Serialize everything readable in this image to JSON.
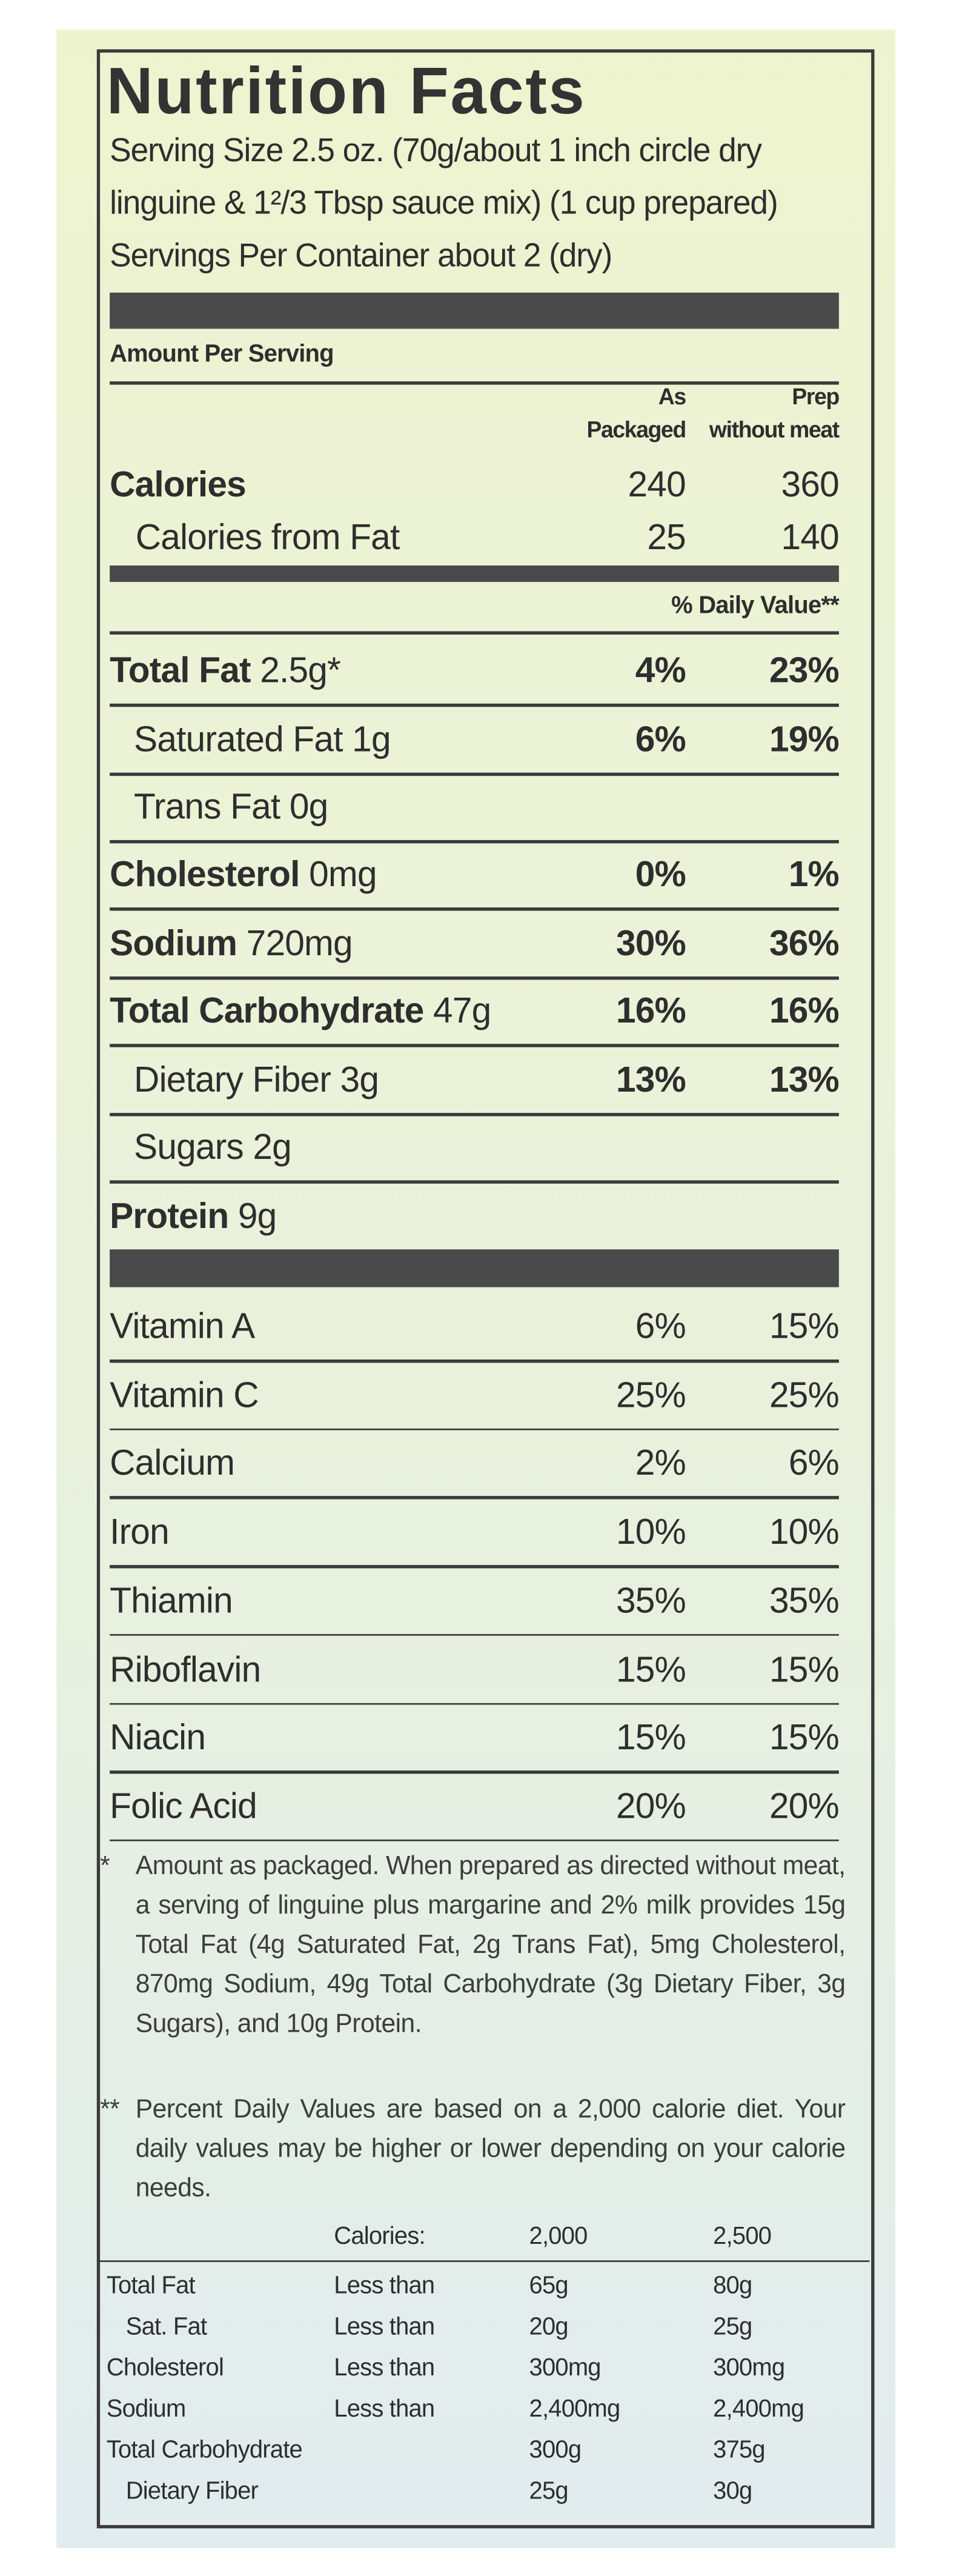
{
  "title": "Nutrition Facts",
  "serving": [
    "Serving Size 2.5 oz. (70g/about 1 inch circle dry",
    "linguine & 1²/3 Tbsp sauce mix) (1 cup prepared)",
    "Servings Per Container about 2 (dry)"
  ],
  "amount_per_serving": "Amount Per Serving",
  "columns": [
    [
      "As",
      "Packaged"
    ],
    [
      "Prep",
      "without meat"
    ]
  ],
  "calories": {
    "label": "Calories",
    "packaged": 240,
    "prep": 360
  },
  "calories_from_fat": {
    "label": "Calories from Fat",
    "packaged": 25,
    "prep": 140
  },
  "daily_value_header": "% Daily Value**",
  "nutrients": [
    {
      "name": "Total Fat",
      "amount": "2.5g*",
      "packaged": "4%",
      "prep": "23%"
    },
    {
      "name": "Saturated Fat",
      "amount": "1g",
      "packaged": "6%",
      "prep": "19%"
    },
    {
      "name": "Trans Fat",
      "amount": "0g"
    },
    {
      "name": "Cholesterol",
      "amount": "0mg",
      "packaged": "0%",
      "prep": "1%"
    },
    {
      "name": "Sodium",
      "amount": "720mg",
      "packaged": "30%",
      "prep": "36%"
    },
    {
      "name": "Total Carbohydrate",
      "amount": "47g",
      "packaged": "16%",
      "prep": "16%"
    },
    {
      "name": "Dietary Fiber",
      "amount": "3g",
      "packaged": "13%",
      "prep": "13%"
    },
    {
      "name": "Sugars",
      "amount": "2g"
    },
    {
      "name": "Protein",
      "amount": "9g"
    }
  ],
  "vitamins": [
    {
      "name": "Vitamin A",
      "packaged": "6%",
      "prep": "15%"
    },
    {
      "name": "Vitamin C",
      "packaged": "25%",
      "prep": "25%"
    },
    {
      "name": "Calcium",
      "packaged": "2%",
      "prep": "6%"
    },
    {
      "name": "Iron",
      "packaged": "10%",
      "prep": "10%"
    },
    {
      "name": "Thiamin",
      "packaged": "35%",
      "prep": "35%"
    },
    {
      "name": "Riboflavin",
      "packaged": "15%",
      "prep": "15%"
    },
    {
      "name": "Niacin",
      "packaged": "15%",
      "prep": "15%"
    },
    {
      "name": "Folic Acid",
      "packaged": "20%",
      "prep": "20%"
    }
  ],
  "footnote_1": {
    "mark": "*",
    "text": "Amount as packaged. When prepared as directed without meat, a serving of linguine plus margarine and 2% milk provides 15g Total Fat (4g Saturated Fat, 2g Trans Fat), 5mg Cholesterol, 870mg Sodium, 49g Total Carbohydrate (3g Dietary Fiber, 3g Sugars), and 10g Protein."
  },
  "footnote_2": {
    "mark": "**",
    "text": "Percent Daily Values are based on a 2,000 calorie diet. Your daily values may be higher or lower depending on your calorie needs."
  },
  "dv_table": {
    "header": [
      "Calories:",
      "2,000",
      "2,500"
    ],
    "rows": [
      {
        "nutrient": "Total Fat",
        "qualifier": "Less than",
        "kcal_2000": "65g",
        "kcal_2500": "80g"
      },
      {
        "nutrient": "Sat. Fat",
        "qualifier": "Less than",
        "kcal_2000": "20g",
        "kcal_2500": "25g"
      },
      {
        "nutrient": "Cholesterol",
        "qualifier": "Less than",
        "kcal_2000": "300mg",
        "kcal_2500": "300mg"
      },
      {
        "nutrient": "Sodium",
        "qualifier": "Less than",
        "kcal_2000": "2,400mg",
        "kcal_2500": "2,400mg"
      },
      {
        "nutrient": "Total Carbohydrate",
        "kcal_2000": "300g",
        "kcal_2500": "375g"
      },
      {
        "nutrient": "Dietary Fiber",
        "kcal_2000": "25g",
        "kcal_2500": "30g"
      }
    ]
  }
}
